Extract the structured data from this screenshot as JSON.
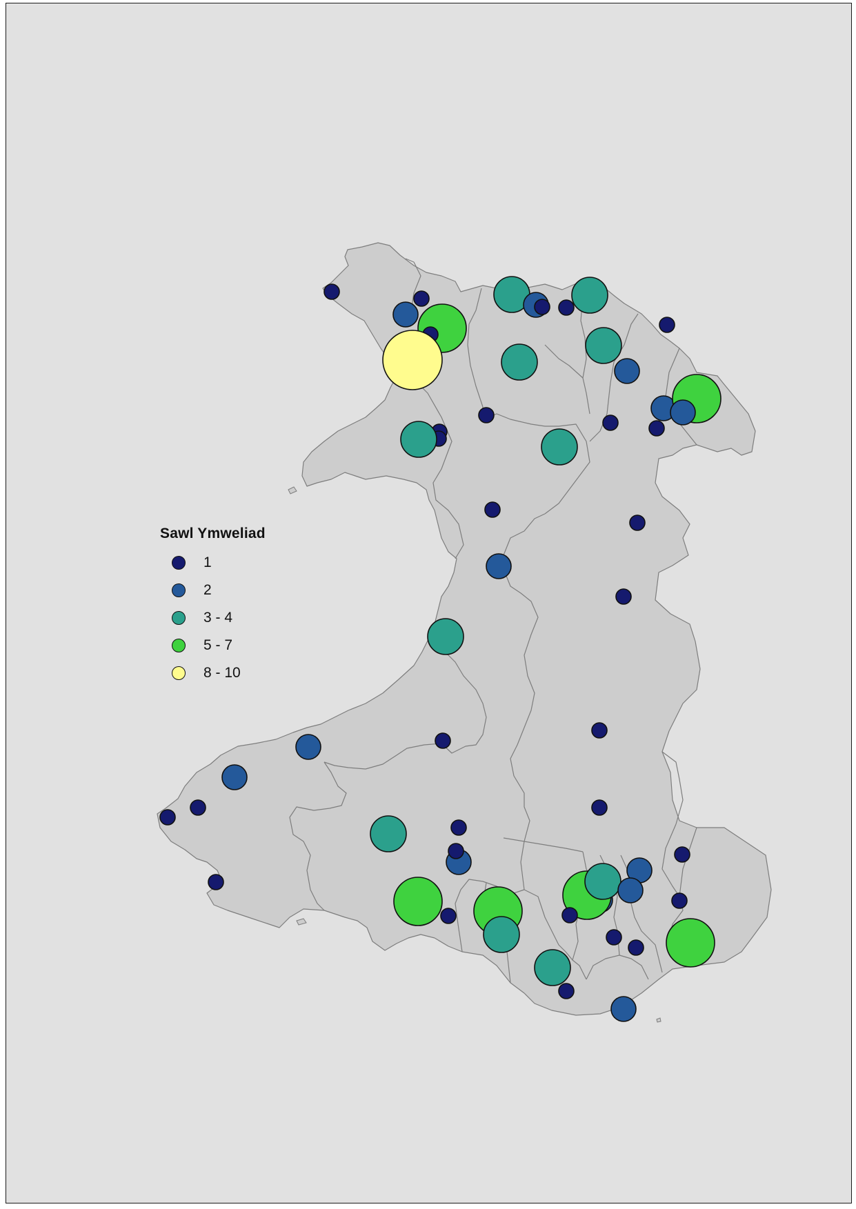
{
  "legend": {
    "title": "Sawl Ymweliad",
    "classes": [
      {
        "label": "1",
        "color": "#151a6e"
      },
      {
        "label": "2",
        "color": "#24599a"
      },
      {
        "label": "3 - 4",
        "color": "#2ba08c"
      },
      {
        "label": "5 - 7",
        "color": "#3fd23f"
      },
      {
        "label": "8 - 10",
        "color": "#fffc8e"
      }
    ]
  },
  "colors": {
    "background": "#e1e1e1",
    "land": "#cdcdcd",
    "boundary": "#7d7d7d"
  },
  "symbols": [
    {
      "cls": 0
    },
    {
      "cls": 0
    },
    {
      "cls": 1
    },
    {
      "cls": 3
    },
    {
      "cls": 0
    },
    {
      "cls": 4
    },
    {
      "cls": 2
    },
    {
      "cls": 1
    },
    {
      "cls": 0
    },
    {
      "cls": 0
    },
    {
      "cls": 2
    },
    {
      "cls": 2
    },
    {
      "cls": 2
    },
    {
      "cls": 0
    },
    {
      "cls": 1
    },
    {
      "cls": 1
    },
    {
      "cls": 3
    },
    {
      "cls": 1
    },
    {
      "cls": 0
    },
    {
      "cls": 0
    },
    {
      "cls": 2
    },
    {
      "cls": 0
    },
    {
      "cls": 0
    },
    {
      "cls": 0
    },
    {
      "cls": 2
    },
    {
      "cls": 0
    },
    {
      "cls": 0
    },
    {
      "cls": 1
    },
    {
      "cls": 0
    },
    {
      "cls": 2
    },
    {
      "cls": 0
    },
    {
      "cls": 0
    },
    {
      "cls": 0
    },
    {
      "cls": 1
    },
    {
      "cls": 1
    },
    {
      "cls": 0
    },
    {
      "cls": 0
    },
    {
      "cls": 0
    },
    {
      "cls": 2
    },
    {
      "cls": 0
    },
    {
      "cls": 1
    },
    {
      "cls": 0
    },
    {
      "cls": 3
    },
    {
      "cls": 0
    },
    {
      "cls": 3
    },
    {
      "cls": 2
    },
    {
      "cls": 1
    },
    {
      "cls": 0
    },
    {
      "cls": 3
    },
    {
      "cls": 2
    },
    {
      "cls": 1
    },
    {
      "cls": 0
    },
    {
      "cls": 1
    },
    {
      "cls": 0
    },
    {
      "cls": 0
    },
    {
      "cls": 0
    },
    {
      "cls": 0
    },
    {
      "cls": 2
    },
    {
      "cls": 3
    },
    {
      "cls": 0
    },
    {
      "cls": 1
    }
  ]
}
